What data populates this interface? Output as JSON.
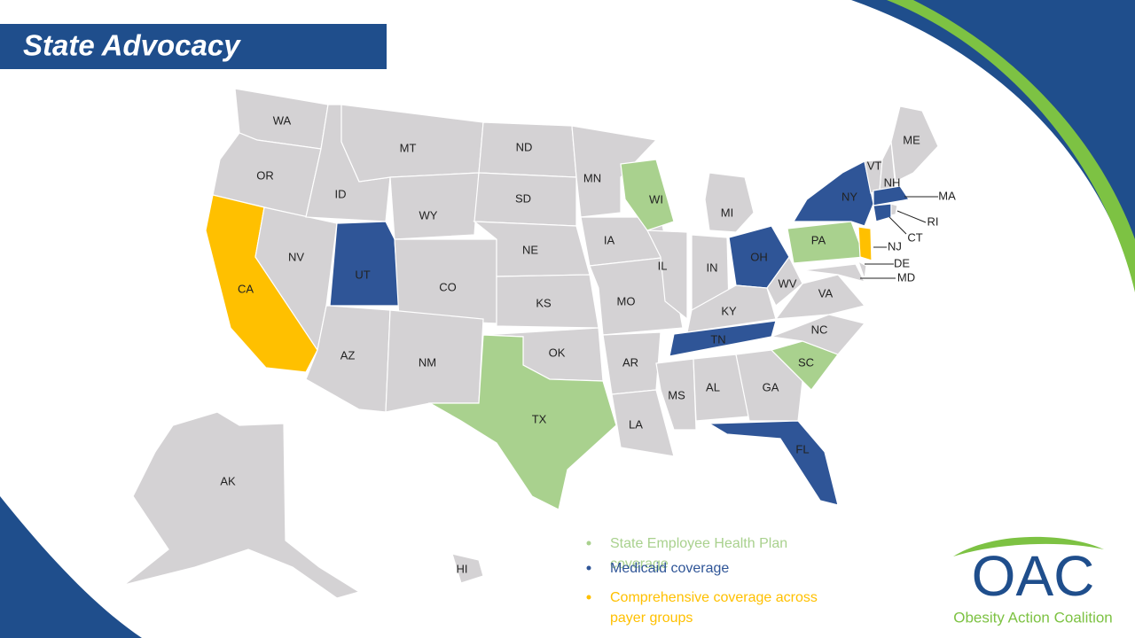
{
  "title": "State Advocacy",
  "states": [
    "WA",
    "OR",
    "CA",
    "NV",
    "ID",
    "MT",
    "WY",
    "UT",
    "CO",
    "AZ",
    "NM",
    "ND",
    "SD",
    "NE",
    "KS",
    "OK",
    "TX",
    "MN",
    "IA",
    "MO",
    "AR",
    "LA",
    "WI",
    "IL",
    "MI",
    "IN",
    "OH",
    "KY",
    "TN",
    "MS",
    "AL",
    "GA",
    "FL",
    "SC",
    "NC",
    "VA",
    "WV",
    "PA",
    "NY",
    "NJ",
    "DE",
    "MD",
    "VT",
    "NH",
    "ME",
    "MA",
    "CT",
    "RI",
    "AK",
    "HI"
  ],
  "legend": [
    {
      "text": "State Employee Health Plan coverage",
      "color": "#a9d18e"
    },
    {
      "text": "Medicaid coverage",
      "color": "#2f5597"
    },
    {
      "text": "Comprehensive coverage across payer groups",
      "color": "#ffc000"
    }
  ],
  "logo": {
    "mark": "OAC",
    "name": "Obesity Action Coalition"
  }
}
